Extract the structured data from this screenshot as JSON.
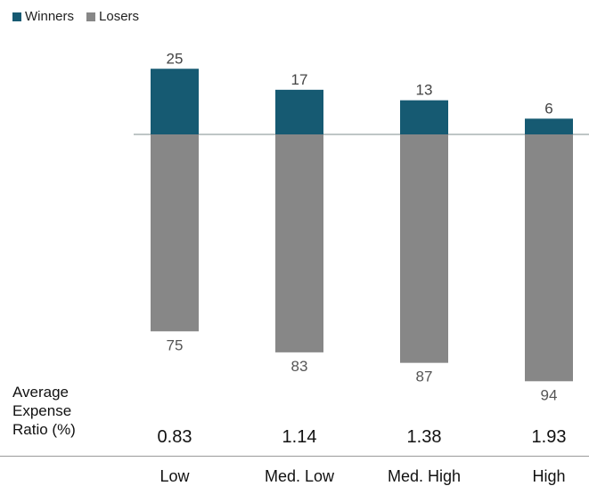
{
  "legend": {
    "items": [
      {
        "label": "Winners",
        "color": "#165a72"
      },
      {
        "label": "Losers",
        "color": "#878787"
      }
    ]
  },
  "expense_ratio": {
    "label_lines": [
      "Average",
      "Expense",
      "Ratio (%)"
    ],
    "values": [
      "0.83",
      "1.14",
      "1.38",
      "1.93"
    ]
  },
  "chart_data": {
    "type": "bar",
    "categories": [
      "Low",
      "Med. Low",
      "Med. High",
      "High"
    ],
    "series": [
      {
        "name": "Winners",
        "values": [
          25,
          17,
          13,
          6
        ],
        "color": "#165a72"
      },
      {
        "name": "Losers",
        "values": [
          75,
          83,
          87,
          94
        ],
        "color": "#878787"
      }
    ],
    "title": "",
    "xlabel": "",
    "ylabel": "",
    "ylim": [
      -94,
      25
    ],
    "grid": false,
    "legend_position": "top-left"
  }
}
